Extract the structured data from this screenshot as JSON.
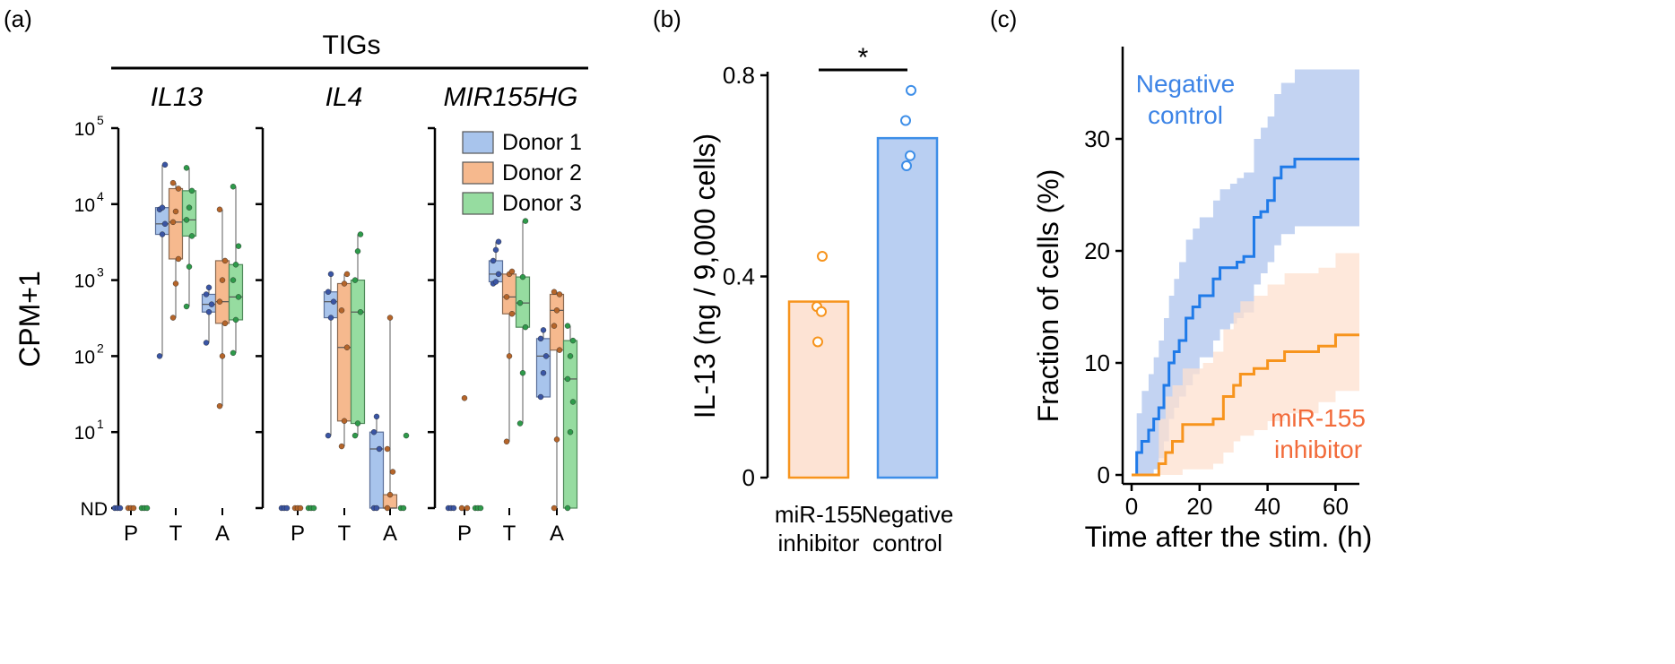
{
  "panel_labels": [
    "(a)",
    "(b)",
    "(c)"
  ],
  "chart_data": [
    {
      "panel": "(a)",
      "type": "box",
      "group_label": "TIGs",
      "ylabel": "CPM+1",
      "yscale": "log",
      "ylim": [
        1,
        100000
      ],
      "ytick_labels": [
        "ND",
        "10",
        "10",
        "10",
        "10",
        "10"
      ],
      "ytick_exponents": [
        "",
        "1",
        "2",
        "3",
        "4",
        "5"
      ],
      "categories": [
        "P",
        "T",
        "A"
      ],
      "legend": {
        "position": "top-right",
        "entries": [
          "Donor 1",
          "Donor 2",
          "Donor 3"
        ]
      },
      "colors": {
        "Donor 1": "#a8c4ec",
        "Donor 2": "#f6b98e",
        "Donor 3": "#96dca0",
        "dot1": "#3a55a4",
        "dot2": "#b5652a",
        "dot3": "#2e9a4a"
      },
      "genes": [
        {
          "name": "IL13",
          "groups": [
            {
              "category": "P",
              "donors": [
                {
                  "donor": "Donor 1",
                  "box": null,
                  "points": [
                    1,
                    1,
                    1
                  ]
                },
                {
                  "donor": "Donor 2",
                  "box": null,
                  "points": [
                    1,
                    1,
                    1
                  ]
                },
                {
                  "donor": "Donor 3",
                  "box": null,
                  "points": [
                    1,
                    1,
                    1
                  ]
                }
              ]
            },
            {
              "category": "T",
              "donors": [
                {
                  "donor": "Donor 1",
                  "box": {
                    "min": 100,
                    "q1": 4000,
                    "median": 5500,
                    "q3": 9000,
                    "max": 33000
                  },
                  "points": [
                    100,
                    4000,
                    5500,
                    8500,
                    9000,
                    33000
                  ]
                },
                {
                  "donor": "Donor 2",
                  "box": {
                    "min": 320,
                    "q1": 1900,
                    "median": 5800,
                    "q3": 16000,
                    "max": 19000
                  },
                  "points": [
                    320,
                    900,
                    1900,
                    5800,
                    8000,
                    16000,
                    19000
                  ]
                },
                {
                  "donor": "Donor 3",
                  "box": {
                    "min": 450,
                    "q1": 3800,
                    "median": 6200,
                    "q3": 15000,
                    "max": 30000
                  },
                  "points": [
                    450,
                    1500,
                    3800,
                    6200,
                    9000,
                    15000,
                    30000
                  ]
                }
              ]
            },
            {
              "category": "A",
              "donors": [
                {
                  "donor": "Donor 1",
                  "box": {
                    "min": 150,
                    "q1": 380,
                    "median": 480,
                    "q3": 650,
                    "max": 800
                  },
                  "points": [
                    150,
                    380,
                    480,
                    650,
                    800
                  ]
                },
                {
                  "donor": "Donor 2",
                  "box": {
                    "min": 22,
                    "q1": 270,
                    "median": 520,
                    "q3": 1800,
                    "max": 8500
                  },
                  "points": [
                    22,
                    100,
                    270,
                    520,
                    1000,
                    1800,
                    8500
                  ]
                },
                {
                  "donor": "Donor 3",
                  "box": {
                    "min": 110,
                    "q1": 300,
                    "median": 600,
                    "q3": 1600,
                    "max": 17000
                  },
                  "points": [
                    110,
                    300,
                    600,
                    1000,
                    1600,
                    2800,
                    17000
                  ]
                }
              ]
            }
          ]
        },
        {
          "name": "IL4",
          "groups": [
            {
              "category": "P",
              "donors": [
                {
                  "donor": "Donor 1",
                  "box": null,
                  "points": [
                    1,
                    1,
                    1
                  ]
                },
                {
                  "donor": "Donor 2",
                  "box": null,
                  "points": [
                    1,
                    1,
                    1
                  ]
                },
                {
                  "donor": "Donor 3",
                  "box": null,
                  "points": [
                    1,
                    1,
                    1
                  ]
                }
              ]
            },
            {
              "category": "T",
              "donors": [
                {
                  "donor": "Donor 1",
                  "box": {
                    "min": 9,
                    "q1": 320,
                    "median": 520,
                    "q3": 700,
                    "max": 1200
                  },
                  "points": [
                    9,
                    320,
                    520,
                    700,
                    1200
                  ]
                },
                {
                  "donor": "Donor 2",
                  "box": {
                    "min": 6.5,
                    "q1": 14,
                    "median": 130,
                    "q3": 900,
                    "max": 1200
                  },
                  "points": [
                    6.5,
                    14,
                    130,
                    400,
                    900,
                    1200
                  ]
                },
                {
                  "donor": "Donor 3",
                  "box": {
                    "min": 9,
                    "q1": 13,
                    "median": 380,
                    "q3": 1000,
                    "max": 4000
                  },
                  "points": [
                    9,
                    13,
                    380,
                    1000,
                    2400,
                    4000
                  ]
                }
              ]
            },
            {
              "category": "A",
              "donors": [
                {
                  "donor": "Donor 1",
                  "box": {
                    "min": 1,
                    "q1": 1,
                    "median": 6,
                    "q3": 10,
                    "max": 16
                  },
                  "points": [
                    1,
                    1,
                    6,
                    10,
                    16
                  ]
                },
                {
                  "donor": "Donor 2",
                  "box": {
                    "min": 1,
                    "q1": 1,
                    "median": 1,
                    "q3": 1.5,
                    "max": 320
                  },
                  "points": [
                    1,
                    1.5,
                    3,
                    6,
                    320
                  ]
                },
                {
                  "donor": "Donor 3",
                  "box": null,
                  "points": [
                    1,
                    1,
                    9
                  ]
                }
              ]
            }
          ]
        },
        {
          "name": "MIR155HG",
          "groups": [
            {
              "category": "P",
              "donors": [
                {
                  "donor": "Donor 1",
                  "box": null,
                  "points": [
                    1,
                    1,
                    1
                  ]
                },
                {
                  "donor": "Donor 2",
                  "box": null,
                  "points": [
                    1,
                    28,
                    1
                  ]
                },
                {
                  "donor": "Donor 3",
                  "box": null,
                  "points": [
                    1,
                    1,
                    1
                  ]
                }
              ]
            },
            {
              "category": "T",
              "donors": [
                {
                  "donor": "Donor 1",
                  "box": {
                    "min": 900,
                    "q1": 950,
                    "median": 1200,
                    "q3": 1800,
                    "max": 3200
                  },
                  "points": [
                    900,
                    950,
                    1200,
                    1800,
                    2500,
                    3200
                  ]
                },
                {
                  "donor": "Donor 2",
                  "box": {
                    "min": 7.5,
                    "q1": 360,
                    "median": 600,
                    "q3": 1200,
                    "max": 1300
                  },
                  "points": [
                    7.5,
                    100,
                    360,
                    600,
                    1200,
                    1300
                  ]
                },
                {
                  "donor": "Donor 3",
                  "box": {
                    "min": 13,
                    "q1": 240,
                    "median": 500,
                    "q3": 1100,
                    "max": 6000
                  },
                  "points": [
                    13,
                    60,
                    240,
                    500,
                    1100,
                    6000
                  ]
                }
              ]
            },
            {
              "category": "A",
              "donors": [
                {
                  "donor": "Donor 1",
                  "box": {
                    "min": 29,
                    "q1": 29,
                    "median": 100,
                    "q3": 170,
                    "max": 220
                  },
                  "points": [
                    29,
                    60,
                    100,
                    170,
                    220
                  ]
                },
                {
                  "donor": "Donor 2",
                  "box": {
                    "min": 1,
                    "q1": 120,
                    "median": 400,
                    "q3": 650,
                    "max": 700
                  },
                  "points": [
                    1,
                    8,
                    120,
                    250,
                    400,
                    650,
                    700
                  ]
                },
                {
                  "donor": "Donor 3",
                  "box": {
                    "min": 1,
                    "q1": 1,
                    "median": 50,
                    "q3": 160,
                    "max": 250
                  },
                  "points": [
                    1,
                    10,
                    25,
                    50,
                    100,
                    160,
                    250
                  ]
                }
              ]
            }
          ]
        }
      ]
    },
    {
      "panel": "(b)",
      "type": "bar",
      "ylabel": "IL-13 (ng / 9,000 cells)",
      "ylim": [
        0,
        0.8
      ],
      "ytick_labels": [
        "0",
        "0.4",
        "0.8"
      ],
      "categories": [
        "miR-155 inhibitor",
        "Negative control"
      ],
      "category_lines": [
        [
          "miR-155",
          "inhibitor"
        ],
        [
          "Negative",
          "control"
        ]
      ],
      "values": [
        0.35,
        0.675
      ],
      "points": [
        [
          0.44,
          0.34,
          0.33,
          0.27
        ],
        [
          0.77,
          0.71,
          0.64,
          0.62
        ]
      ],
      "colors": {
        "miR-155 inhibitor": "#f7941d",
        "Negative control": "#3d8ee8",
        "fill_inhibitor": "#fde3d4",
        "fill_control": "#b9cff2"
      },
      "significance": "*"
    },
    {
      "panel": "(c)",
      "type": "line",
      "xlabel": "Time after the stim. (h)",
      "ylabel": "Fraction of cells (%)",
      "xlim": [
        0,
        67
      ],
      "ylim": [
        0,
        38
      ],
      "xtick_labels": [
        "0",
        "20",
        "40",
        "60"
      ],
      "ytick_labels": [
        "0",
        "10",
        "20",
        "30"
      ],
      "colors": {
        "Negative control": "#1f7ae8",
        "miR-155 inhibitor": "#f7941d",
        "band_control": "#b8cbf0",
        "band_inhibitor": "#fde0cf",
        "label_control": "#3d84e6",
        "label_inhibitor": "#f26b3a"
      },
      "series": [
        {
          "name": "Negative control",
          "label_lines": [
            "Negative",
            "control"
          ],
          "x": [
            0,
            1.5,
            3,
            5,
            6.5,
            8,
            9.5,
            11,
            12.5,
            14,
            16,
            18,
            20,
            24,
            26,
            29,
            31,
            33,
            36,
            38,
            40,
            42,
            44,
            48,
            67
          ],
          "y": [
            0,
            2,
            3,
            4,
            5,
            6,
            8,
            10,
            11,
            12,
            14,
            15,
            16,
            17.5,
            18.5,
            18.5,
            19,
            19.5,
            23,
            23.5,
            24.5,
            26.5,
            27.5,
            28.2,
            28.2
          ],
          "lower": [
            0,
            0,
            0,
            0,
            0.5,
            1.5,
            3,
            5,
            6,
            7,
            8,
            9,
            10.5,
            12,
            13,
            13.5,
            14,
            14.5,
            17,
            18,
            19,
            20.5,
            21.5,
            22.2,
            22.2
          ],
          "upper": [
            0,
            5.5,
            7.5,
            9,
            10.5,
            12,
            14,
            16,
            17.5,
            19,
            21,
            22,
            23,
            24.5,
            25.5,
            26,
            26.5,
            27,
            30,
            31,
            32,
            34,
            35,
            36.2,
            36.2
          ]
        },
        {
          "name": "miR-155 inhibitor",
          "label_lines": [
            "miR-155",
            "inhibitor"
          ],
          "x": [
            0,
            2,
            7,
            8,
            10,
            12,
            15,
            21,
            24,
            27,
            30,
            32,
            36,
            40,
            45,
            55,
            60,
            67
          ],
          "y": [
            0,
            0,
            0,
            1,
            2,
            3,
            4.5,
            4.5,
            5,
            7,
            8,
            9,
            9.5,
            10.2,
            11,
            11.5,
            12.5,
            12.5
          ],
          "lower": [
            0,
            0,
            0,
            0,
            0,
            0,
            0.5,
            0.5,
            1,
            2,
            3,
            3.5,
            4,
            4.8,
            5.5,
            6.5,
            7.5,
            7.5
          ],
          "upper": [
            0,
            0,
            0,
            5,
            7,
            8,
            9.5,
            10,
            11,
            13,
            14.5,
            15.5,
            16,
            17,
            18,
            18.5,
            19.8,
            19.8
          ]
        }
      ]
    }
  ]
}
